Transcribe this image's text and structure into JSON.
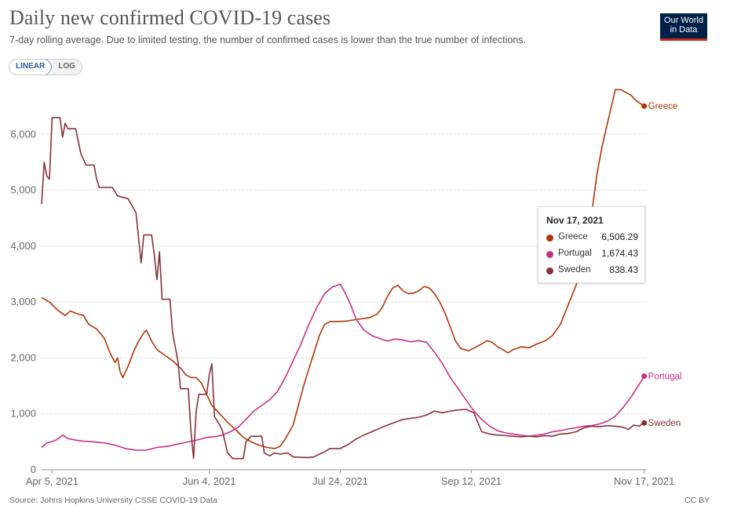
{
  "header": {
    "title": "Daily new confirmed COVID-19 cases",
    "subtitle": "7-day rolling average. Due to limited testing, the number of confirmed cases is lower than the true number of infections.",
    "logo_line1": "Our World",
    "logo_line2": "in Data"
  },
  "scale_toggle": {
    "linear_label": "LINEAR",
    "log_label": "LOG"
  },
  "footer": {
    "source": "Source: Johns Hopkins University CSSE COVID-19 Data",
    "license": "CC BY"
  },
  "tooltip": {
    "date": "Nov 17, 2021",
    "rows": [
      {
        "name": "Greece",
        "value": "6,506.29",
        "color": "#b13507"
      },
      {
        "name": "Portugal",
        "value": "1,674.43",
        "color": "#c82f85"
      },
      {
        "name": "Sweden",
        "value": "838.43",
        "color": "#883039"
      }
    ]
  },
  "chart_data": {
    "type": "line",
    "title": "Daily new confirmed COVID-19 cases",
    "xlabel": "",
    "ylabel": "",
    "x_range_days": [
      0,
      231
    ],
    "ylim": [
      0,
      7000
    ],
    "y_ticks": [
      0,
      1000,
      2000,
      3000,
      4000,
      5000,
      6000
    ],
    "y_tick_labels": [
      "0",
      "1,000",
      "2,000",
      "3,000",
      "4,000",
      "5,000",
      "6,000"
    ],
    "x_ticks": [
      {
        "day": 4,
        "label": "Apr 5, 2021"
      },
      {
        "day": 64,
        "label": "Jun 4, 2021"
      },
      {
        "day": 114,
        "label": "Jul 24, 2021"
      },
      {
        "day": 164,
        "label": "Sep 12, 2021"
      },
      {
        "day": 230,
        "label": "Nov 17, 2021"
      }
    ],
    "x_start_date": "Apr 1, 2021",
    "series": [
      {
        "name": "Greece",
        "color": "#b13507",
        "end_label": "Greece",
        "points": [
          [
            0,
            3080
          ],
          [
            3,
            3000
          ],
          [
            6,
            2860
          ],
          [
            9,
            2760
          ],
          [
            11,
            2840
          ],
          [
            13,
            2800
          ],
          [
            16,
            2760
          ],
          [
            18,
            2600
          ],
          [
            21,
            2520
          ],
          [
            24,
            2350
          ],
          [
            26,
            2100
          ],
          [
            28,
            1920
          ],
          [
            29,
            2000
          ],
          [
            30,
            1750
          ],
          [
            31,
            1650
          ],
          [
            33,
            1850
          ],
          [
            35,
            2100
          ],
          [
            37,
            2300
          ],
          [
            39,
            2450
          ],
          [
            40,
            2500
          ],
          [
            42,
            2300
          ],
          [
            44,
            2150
          ],
          [
            47,
            2050
          ],
          [
            50,
            1950
          ],
          [
            53,
            1820
          ],
          [
            55,
            1700
          ],
          [
            57,
            1650
          ],
          [
            59,
            1650
          ],
          [
            61,
            1550
          ],
          [
            63,
            1350
          ],
          [
            65,
            1150
          ],
          [
            68,
            1000
          ],
          [
            71,
            850
          ],
          [
            74,
            720
          ],
          [
            77,
            580
          ],
          [
            80,
            500
          ],
          [
            83,
            440
          ],
          [
            86,
            400
          ],
          [
            89,
            380
          ],
          [
            91,
            420
          ],
          [
            93,
            550
          ],
          [
            96,
            800
          ],
          [
            98,
            1150
          ],
          [
            100,
            1500
          ],
          [
            102,
            1800
          ],
          [
            104,
            2100
          ],
          [
            106,
            2400
          ],
          [
            108,
            2600
          ],
          [
            110,
            2650
          ],
          [
            113,
            2650
          ],
          [
            116,
            2660
          ],
          [
            119,
            2680
          ],
          [
            122,
            2700
          ],
          [
            125,
            2720
          ],
          [
            128,
            2780
          ],
          [
            130,
            2900
          ],
          [
            132,
            3100
          ],
          [
            134,
            3250
          ],
          [
            136,
            3300
          ],
          [
            138,
            3200
          ],
          [
            140,
            3150
          ],
          [
            142,
            3160
          ],
          [
            144,
            3200
          ],
          [
            146,
            3280
          ],
          [
            148,
            3250
          ],
          [
            150,
            3150
          ],
          [
            152,
            3000
          ],
          [
            154,
            2800
          ],
          [
            156,
            2550
          ],
          [
            158,
            2300
          ],
          [
            160,
            2170
          ],
          [
            163,
            2130
          ],
          [
            166,
            2200
          ],
          [
            168,
            2250
          ],
          [
            170,
            2310
          ],
          [
            172,
            2280
          ],
          [
            174,
            2200
          ],
          [
            176,
            2150
          ],
          [
            178,
            2090
          ],
          [
            180,
            2150
          ],
          [
            183,
            2200
          ],
          [
            186,
            2180
          ],
          [
            189,
            2250
          ],
          [
            192,
            2300
          ],
          [
            195,
            2400
          ],
          [
            198,
            2600
          ],
          [
            201,
            2950
          ],
          [
            204,
            3300
          ],
          [
            206,
            3600
          ],
          [
            208,
            4000
          ],
          [
            210,
            4600
          ],
          [
            212,
            5300
          ],
          [
            214,
            5800
          ],
          [
            216,
            6200
          ],
          [
            218,
            6600
          ],
          [
            219,
            6800
          ],
          [
            221,
            6800
          ],
          [
            223,
            6750
          ],
          [
            225,
            6700
          ],
          [
            227,
            6600
          ],
          [
            230,
            6506.29
          ]
        ]
      },
      {
        "name": "Portugal",
        "color": "#c82f85",
        "end_label": "Portugal",
        "points": [
          [
            0,
            400
          ],
          [
            2,
            480
          ],
          [
            5,
            520
          ],
          [
            7,
            580
          ],
          [
            8,
            620
          ],
          [
            10,
            560
          ],
          [
            13,
            530
          ],
          [
            16,
            510
          ],
          [
            20,
            500
          ],
          [
            24,
            480
          ],
          [
            28,
            440
          ],
          [
            32,
            380
          ],
          [
            36,
            350
          ],
          [
            40,
            350
          ],
          [
            44,
            400
          ],
          [
            48,
            420
          ],
          [
            52,
            460
          ],
          [
            56,
            500
          ],
          [
            60,
            540
          ],
          [
            63,
            580
          ],
          [
            66,
            590
          ],
          [
            69,
            620
          ],
          [
            72,
            680
          ],
          [
            75,
            760
          ],
          [
            78,
            900
          ],
          [
            81,
            1050
          ],
          [
            84,
            1150
          ],
          [
            87,
            1250
          ],
          [
            90,
            1400
          ],
          [
            93,
            1650
          ],
          [
            96,
            1950
          ],
          [
            99,
            2250
          ],
          [
            102,
            2600
          ],
          [
            105,
            2900
          ],
          [
            108,
            3150
          ],
          [
            111,
            3270
          ],
          [
            114,
            3320
          ],
          [
            116,
            3150
          ],
          [
            118,
            2950
          ],
          [
            120,
            2700
          ],
          [
            123,
            2500
          ],
          [
            126,
            2400
          ],
          [
            129,
            2350
          ],
          [
            132,
            2300
          ],
          [
            135,
            2340
          ],
          [
            138,
            2320
          ],
          [
            141,
            2290
          ],
          [
            144,
            2310
          ],
          [
            147,
            2280
          ],
          [
            150,
            2100
          ],
          [
            153,
            1900
          ],
          [
            156,
            1650
          ],
          [
            159,
            1450
          ],
          [
            162,
            1250
          ],
          [
            165,
            1050
          ],
          [
            168,
            900
          ],
          [
            171,
            780
          ],
          [
            174,
            700
          ],
          [
            177,
            660
          ],
          [
            180,
            640
          ],
          [
            183,
            620
          ],
          [
            186,
            600
          ],
          [
            189,
            620
          ],
          [
            192,
            640
          ],
          [
            195,
            680
          ],
          [
            198,
            700
          ],
          [
            201,
            730
          ],
          [
            204,
            750
          ],
          [
            207,
            780
          ],
          [
            210,
            790
          ],
          [
            213,
            820
          ],
          [
            216,
            870
          ],
          [
            219,
            960
          ],
          [
            222,
            1120
          ],
          [
            225,
            1300
          ],
          [
            228,
            1520
          ],
          [
            230,
            1674.43
          ]
        ]
      },
      {
        "name": "Sweden",
        "color": "#883039",
        "end_label": "Sweden",
        "points": [
          [
            0,
            4750
          ],
          [
            1,
            5500
          ],
          [
            2,
            5250
          ],
          [
            3,
            5200
          ],
          [
            4,
            6300
          ],
          [
            7,
            6300
          ],
          [
            8,
            5950
          ],
          [
            9,
            6200
          ],
          [
            10,
            6100
          ],
          [
            13,
            6100
          ],
          [
            15,
            5650
          ],
          [
            16,
            5550
          ],
          [
            17,
            5450
          ],
          [
            20,
            5450
          ],
          [
            21,
            5200
          ],
          [
            22,
            5050
          ],
          [
            27,
            5050
          ],
          [
            29,
            4900
          ],
          [
            33,
            4850
          ],
          [
            36,
            4600
          ],
          [
            38,
            3700
          ],
          [
            39,
            4200
          ],
          [
            42,
            4200
          ],
          [
            43,
            3850
          ],
          [
            44,
            3400
          ],
          [
            45,
            3900
          ],
          [
            46,
            3050
          ],
          [
            49,
            3050
          ],
          [
            50,
            2450
          ],
          [
            52,
            1950
          ],
          [
            53,
            1450
          ],
          [
            56,
            1450
          ],
          [
            57,
            700
          ],
          [
            58,
            200
          ],
          [
            59,
            1050
          ],
          [
            60,
            1350
          ],
          [
            63,
            1350
          ],
          [
            64,
            1700
          ],
          [
            65,
            1900
          ],
          [
            66,
            950
          ],
          [
            68,
            800
          ],
          [
            69,
            700
          ],
          [
            71,
            300
          ],
          [
            73,
            200
          ],
          [
            77,
            200
          ],
          [
            78,
            500
          ],
          [
            80,
            600
          ],
          [
            84,
            600
          ],
          [
            85,
            300
          ],
          [
            87,
            250
          ],
          [
            89,
            300
          ],
          [
            91,
            280
          ],
          [
            94,
            300
          ],
          [
            96,
            230
          ],
          [
            100,
            220
          ],
          [
            102,
            220
          ],
          [
            104,
            230
          ],
          [
            106,
            280
          ],
          [
            108,
            320
          ],
          [
            110,
            380
          ],
          [
            114,
            380
          ],
          [
            117,
            450
          ],
          [
            120,
            550
          ],
          [
            123,
            620
          ],
          [
            126,
            680
          ],
          [
            129,
            740
          ],
          [
            132,
            800
          ],
          [
            135,
            850
          ],
          [
            138,
            900
          ],
          [
            141,
            920
          ],
          [
            144,
            940
          ],
          [
            147,
            980
          ],
          [
            150,
            1050
          ],
          [
            153,
            1020
          ],
          [
            156,
            1050
          ],
          [
            159,
            1070
          ],
          [
            162,
            1080
          ],
          [
            165,
            1020
          ],
          [
            168,
            680
          ],
          [
            171,
            640
          ],
          [
            174,
            620
          ],
          [
            177,
            610
          ],
          [
            180,
            600
          ],
          [
            183,
            590
          ],
          [
            186,
            600
          ],
          [
            189,
            590
          ],
          [
            192,
            610
          ],
          [
            195,
            600
          ],
          [
            198,
            640
          ],
          [
            201,
            650
          ],
          [
            204,
            680
          ],
          [
            207,
            750
          ],
          [
            210,
            780
          ],
          [
            213,
            770
          ],
          [
            216,
            790
          ],
          [
            219,
            780
          ],
          [
            222,
            760
          ],
          [
            224,
            720
          ],
          [
            226,
            800
          ],
          [
            228,
            780
          ],
          [
            230,
            838.43
          ]
        ]
      }
    ]
  }
}
